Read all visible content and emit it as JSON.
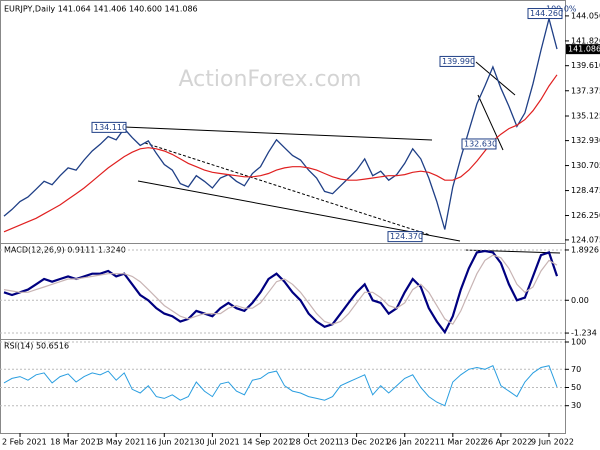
{
  "chart_data": [
    {
      "type": "line",
      "title": "EURJPY,Daily  141.064 141.406 140.600 141.086",
      "watermark": "ActionForex.com",
      "categories": [
        null,
        null,
        "2 Feb 2021",
        null,
        null,
        null,
        null,
        null,
        "18 Mar 2021",
        null,
        null,
        null,
        null,
        null,
        "3 May 2021",
        null,
        null,
        null,
        null,
        null,
        "16 Jun 2021",
        null,
        null,
        null,
        null,
        null,
        "30 Jul 2021",
        null,
        null,
        null,
        null,
        null,
        "14 Sep 2021",
        null,
        null,
        null,
        null,
        null,
        "28 Oct 2021",
        null,
        null,
        null,
        null,
        null,
        "13 Dec 2021",
        null,
        null,
        null,
        null,
        null,
        "26 Jan 2022",
        null,
        null,
        null,
        null,
        null,
        "11 Mar 2022",
        null,
        null,
        null,
        null,
        null,
        "26 Apr 2022",
        null,
        null,
        null,
        null,
        null,
        "9 Jun 2022",
        null
      ],
      "series": [
        {
          "color": "#1f3f86",
          "values": [
            126.2,
            126.8,
            127.5,
            127.9,
            128.6,
            129.3,
            129.0,
            129.8,
            130.5,
            130.3,
            131.2,
            132.0,
            132.6,
            133.3,
            133.0,
            134.0,
            133.2,
            132.5,
            132.9,
            131.8,
            130.8,
            130.3,
            129.1,
            128.8,
            129.8,
            129.3,
            128.7,
            129.6,
            129.9,
            129.3,
            128.9,
            130.0,
            130.6,
            131.9,
            133.0,
            132.3,
            131.6,
            131.2,
            130.3,
            129.6,
            128.4,
            128.2,
            128.9,
            129.6,
            130.3,
            131.3,
            129.8,
            130.2,
            129.4,
            129.9,
            130.9,
            132.2,
            131.3,
            129.6,
            127.5,
            125.0,
            128.8,
            131.4,
            133.8,
            136.2,
            137.8,
            139.5,
            137.6,
            136.0,
            134.2,
            135.4,
            138.0,
            141.0,
            143.8,
            141.086
          ]
        },
        {
          "color": "#e02020",
          "values": [
            124.8,
            125.1,
            125.4,
            125.7,
            126.0,
            126.4,
            126.8,
            127.2,
            127.7,
            128.2,
            128.7,
            129.3,
            129.9,
            130.5,
            131.0,
            131.5,
            131.9,
            132.2,
            132.3,
            132.2,
            132.0,
            131.7,
            131.3,
            130.9,
            130.6,
            130.3,
            130.1,
            130.0,
            129.9,
            129.8,
            129.7,
            129.7,
            129.8,
            130.0,
            130.3,
            130.5,
            130.6,
            130.6,
            130.5,
            130.3,
            130.0,
            129.7,
            129.5,
            129.4,
            129.4,
            129.5,
            129.6,
            129.7,
            129.8,
            129.8,
            129.9,
            130.1,
            130.2,
            130.1,
            129.8,
            129.4,
            129.4,
            129.7,
            130.3,
            131.1,
            132.0,
            132.9,
            133.5,
            134.0,
            134.3,
            134.8,
            135.6,
            136.6,
            137.8,
            138.8
          ]
        }
      ],
      "ylim": [
        123.8,
        145.2
      ],
      "yticks": [
        {
          "value": 144.05,
          "label": "144.050"
        },
        {
          "value": 141.82,
          "label": "141.820"
        },
        {
          "value": 139.61,
          "label": "139.610"
        },
        137.375,
        135.125,
        {
          "value": 132.93,
          "label": "132.930"
        },
        130.705,
        128.475,
        {
          "value": 126.25,
          "label": "126.250"
        },
        124.075
      ],
      "annotations": [
        {
          "value": 134.11,
          "label": "134.110"
        },
        {
          "value": 139.99,
          "label": "139.990"
        },
        {
          "value": 144.26,
          "label": "144.260"
        },
        {
          "value": 132.63,
          "label": "132.630"
        },
        {
          "value": 124.37,
          "label": "124.370"
        }
      ],
      "fib_label": "100.0%"
    },
    {
      "type": "line",
      "title": "MACD(12,26,9) 0.9111 1.3240",
      "series": [
        {
          "color": "#000080",
          "values": [
            0.3,
            0.2,
            0.3,
            0.4,
            0.6,
            0.8,
            0.7,
            0.8,
            0.9,
            0.8,
            0.9,
            1.0,
            1.0,
            1.1,
            0.9,
            1.0,
            0.6,
            0.2,
            0.0,
            -0.3,
            -0.5,
            -0.6,
            -0.8,
            -0.7,
            -0.4,
            -0.5,
            -0.6,
            -0.3,
            -0.1,
            -0.3,
            -0.4,
            -0.1,
            0.3,
            0.8,
            1.0,
            0.7,
            0.3,
            0.0,
            -0.5,
            -0.8,
            -1.0,
            -0.9,
            -0.5,
            -0.1,
            0.3,
            0.6,
            0.0,
            -0.1,
            -0.5,
            -0.3,
            0.3,
            0.8,
            0.5,
            -0.3,
            -0.8,
            -1.2,
            -0.6,
            0.4,
            1.2,
            1.8,
            1.85,
            1.8,
            1.4,
            0.6,
            0.0,
            0.1,
            0.9,
            1.7,
            1.8,
            0.9111
          ]
        },
        {
          "color": "#c8b4b4",
          "values": [
            0.4,
            0.35,
            0.3,
            0.3,
            0.4,
            0.5,
            0.6,
            0.7,
            0.8,
            0.8,
            0.85,
            0.9,
            0.95,
            1.0,
            1.0,
            1.0,
            0.9,
            0.7,
            0.4,
            0.1,
            -0.2,
            -0.4,
            -0.6,
            -0.7,
            -0.6,
            -0.5,
            -0.5,
            -0.5,
            -0.3,
            -0.2,
            -0.3,
            -0.3,
            -0.1,
            0.3,
            0.7,
            0.8,
            0.6,
            0.3,
            -0.1,
            -0.5,
            -0.8,
            -0.9,
            -0.8,
            -0.5,
            -0.1,
            0.3,
            0.3,
            0.1,
            -0.2,
            -0.3,
            -0.1,
            0.4,
            0.6,
            0.3,
            -0.2,
            -0.7,
            -0.9,
            -0.4,
            0.3,
            1.0,
            1.5,
            1.7,
            1.6,
            1.2,
            0.6,
            0.3,
            0.5,
            1.1,
            1.5,
            1.324
          ]
        }
      ],
      "ylim": [
        -1.42,
        2.08
      ],
      "yticks": [
        1.8926,
        {
          "value": 0,
          "label": "0.00"
        },
        -1.234
      ]
    },
    {
      "type": "line",
      "title": "RSI(14) 50.6516",
      "series": [
        {
          "color": "#2a9ee0",
          "values": [
            55,
            60,
            62,
            58,
            64,
            66,
            55,
            62,
            65,
            56,
            62,
            66,
            64,
            68,
            58,
            66,
            48,
            44,
            52,
            40,
            38,
            42,
            36,
            40,
            56,
            46,
            40,
            54,
            56,
            46,
            42,
            58,
            60,
            66,
            68,
            52,
            46,
            44,
            40,
            38,
            36,
            40,
            52,
            56,
            60,
            64,
            42,
            52,
            44,
            52,
            60,
            64,
            50,
            40,
            34,
            30,
            56,
            64,
            70,
            72,
            70,
            74,
            52,
            46,
            40,
            56,
            66,
            72,
            74,
            50.6516
          ]
        }
      ],
      "ylim": [
        0,
        100
      ],
      "yticks": [
        100,
        70,
        50,
        30
      ]
    }
  ]
}
